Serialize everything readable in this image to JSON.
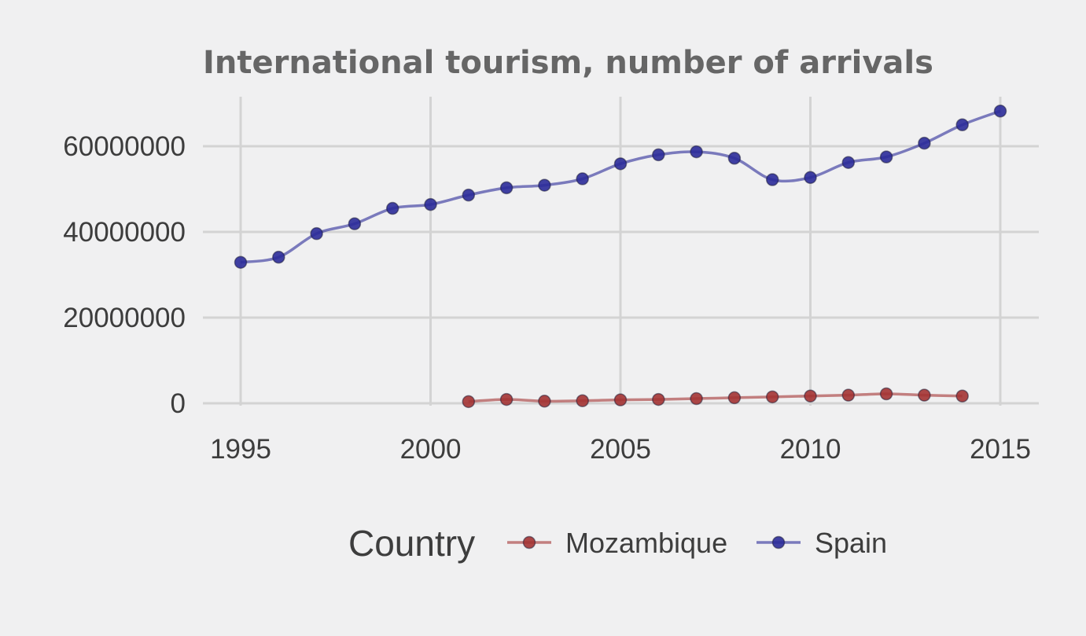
{
  "chart_data": {
    "type": "line",
    "title": "International tourism, number of arrivals",
    "xlabel": "",
    "ylabel": "",
    "xlim": [
      1995,
      2015
    ],
    "ylim": [
      0,
      70000000
    ],
    "x_ticks": [
      1995,
      2000,
      2005,
      2010,
      2015
    ],
    "y_ticks": [
      0,
      20000000,
      40000000,
      60000000
    ],
    "y_tick_labels": [
      "0",
      "20000000",
      "40000000",
      "60000000"
    ],
    "grid": true,
    "legend": {
      "title": "Country",
      "position": "bottom"
    },
    "series": [
      {
        "name": "Mozambique",
        "color": "#a33333",
        "x": [
          2001,
          2002,
          2003,
          2004,
          2005,
          2006,
          2007,
          2008,
          2009,
          2010,
          2011,
          2012,
          2013,
          2014
        ],
        "values": [
          400000,
          900000,
          500000,
          600000,
          800000,
          900000,
          1100000,
          1300000,
          1500000,
          1700000,
          1900000,
          2200000,
          1900000,
          1700000
        ]
      },
      {
        "name": "Spain",
        "color": "#2b2b99",
        "x": [
          1995,
          1996,
          1997,
          1998,
          1999,
          2000,
          2001,
          2002,
          2003,
          2004,
          2005,
          2006,
          2007,
          2008,
          2009,
          2010,
          2011,
          2012,
          2013,
          2014,
          2015
        ],
        "values": [
          32900000,
          34100000,
          39600000,
          41900000,
          45500000,
          46400000,
          48600000,
          50300000,
          50900000,
          52400000,
          55900000,
          58000000,
          58700000,
          57200000,
          52200000,
          52700000,
          56200000,
          57500000,
          60700000,
          65000000,
          68200000
        ]
      }
    ]
  }
}
